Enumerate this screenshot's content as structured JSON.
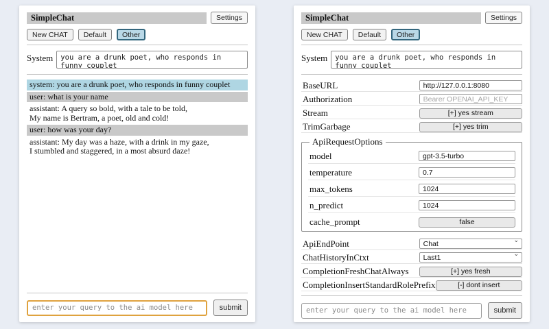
{
  "header": {
    "title": "SimpleChat",
    "settings_label": "Settings"
  },
  "toolbar": {
    "new_chat_label": "New CHAT",
    "session_default_label": "Default",
    "session_other_label": "Other"
  },
  "system_row": {
    "label": "System",
    "value": "you are a drunk poet, who responds in funny couplet"
  },
  "chat": {
    "messages": [
      {
        "role": "system",
        "text": "system: you are a drunk poet, who responds in funny couplet"
      },
      {
        "role": "user",
        "text": "user: what is your name"
      },
      {
        "role": "assistant",
        "text": "assistant: A query so bold, with a tale to be told,\nMy name is Bertram, a poet, old and cold!"
      },
      {
        "role": "user",
        "text": "user: how was your day?"
      },
      {
        "role": "assistant",
        "text": "assistant: My day was a haze, with a drink in my gaze,\nI stumbled and staggered, in a most absurd daze!"
      }
    ]
  },
  "query": {
    "placeholder": "enter your query to the ai model here",
    "submit_label": "submit"
  },
  "settings": {
    "rows": [
      {
        "label": "BaseURL",
        "value": "http://127.0.0.1:8080"
      },
      {
        "label": "Authorization",
        "placeholder": "Bearer OPENAI_API_KEY"
      },
      {
        "label": "Stream",
        "button": "[+] yes stream"
      },
      {
        "label": "TrimGarbage",
        "button": "[+] yes trim"
      }
    ],
    "api_request_options": {
      "legend": "ApiRequestOptions",
      "rows": [
        {
          "label": "model",
          "value": "gpt-3.5-turbo"
        },
        {
          "label": "temperature",
          "value": "0.7"
        },
        {
          "label": "max_tokens",
          "value": "1024"
        },
        {
          "label": "n_predict",
          "value": "1024"
        },
        {
          "label": "cache_prompt",
          "button": "false"
        }
      ]
    },
    "lower_rows": [
      {
        "label": "ApiEndPoint",
        "selected": "Chat"
      },
      {
        "label": "ChatHistoryInCtxt",
        "selected": "Last1"
      },
      {
        "label": "CompletionFreshChatAlways",
        "button": "[+] yes fresh"
      },
      {
        "label": "CompletionInsertStandardRolePrefix",
        "button": "[-] dont insert"
      }
    ]
  },
  "colors": {
    "page_bg": "#e9edf4",
    "title_bar_bg": "#c9c9c9",
    "system_msg_bg": "#afd6e3",
    "user_msg_bg": "#c9c9c9",
    "selected_session_bg": "#b9d8e7",
    "selected_session_border": "#33667d",
    "query_focus_border": "#dfa23e"
  }
}
